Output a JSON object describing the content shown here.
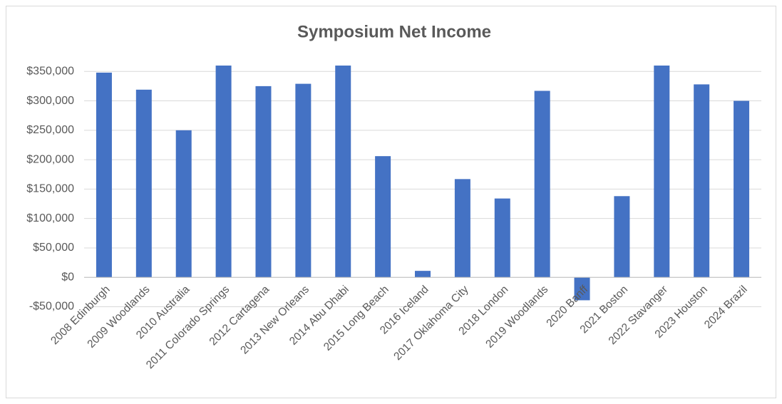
{
  "chart_data": {
    "type": "bar",
    "title": "Symposium Net Income",
    "categories": [
      "2008 Edinburgh",
      "2009 Woodlands",
      "2010 Australia",
      "2011 Colorado Springs",
      "2012 Cartagena",
      "2013 New Orleans",
      "2014 Abu Dhabi",
      "2015 Long Beach",
      "2016 Iceland",
      "2017 Oklahoma City",
      "2018 London",
      "2019 Woodlands",
      "2020 Banff",
      "2021 Boston",
      "2022 Stavanger",
      "2023 Houston",
      "2024 Brazil"
    ],
    "values": [
      348000,
      319000,
      250000,
      360000,
      325000,
      329000,
      360000,
      206000,
      11000,
      167000,
      134000,
      317000,
      -39000,
      138000,
      360000,
      328000,
      300000
    ],
    "color": "#4472c4",
    "ylim": [
      -50000,
      360000
    ],
    "yticks": [
      {
        "value": -50000,
        "label": "-$50,000"
      },
      {
        "value": 0,
        "label": "$0"
      },
      {
        "value": 50000,
        "label": "$50,000"
      },
      {
        "value": 100000,
        "label": "$100,000"
      },
      {
        "value": 150000,
        "label": "$150,000"
      },
      {
        "value": 200000,
        "label": "$200,000"
      },
      {
        "value": 250000,
        "label": "$250,000"
      },
      {
        "value": 300000,
        "label": "$300,000"
      },
      {
        "value": 350000,
        "label": "$350,000"
      }
    ],
    "grid": true
  }
}
